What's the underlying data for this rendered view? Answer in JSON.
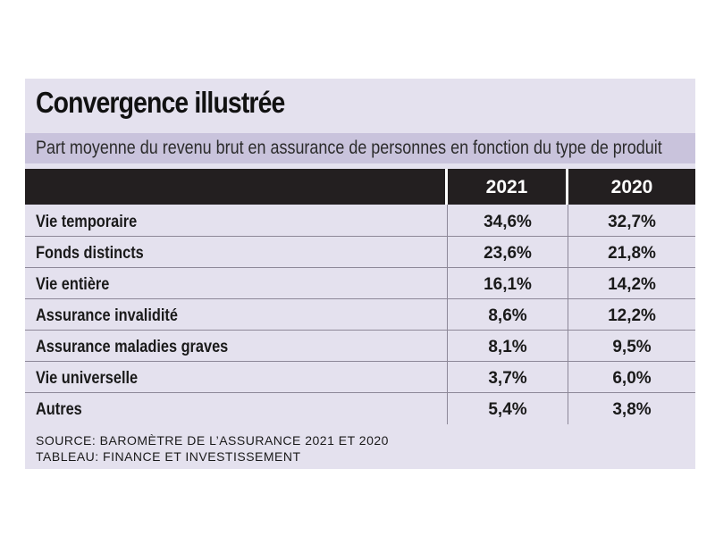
{
  "title": "Convergence illustrée",
  "subtitle": "Part moyenne du revenu brut en assurance de personnes en fonction du type de produit",
  "source_line1": "SOURCE: BAROMÈTRE DE L’ASSURANCE 2021 ET 2020",
  "source_line2": "TABLEAU: FINANCE ET INVESTISSEMENT",
  "colors": {
    "panel": "#e4e1ee",
    "subtitle_bar": "#c9c3dc",
    "header": "#231f20"
  },
  "chart_data": {
    "type": "table",
    "title": "Convergence illustrée",
    "subtitle": "Part moyenne du revenu brut en assurance de personnes en fonction du type de produit",
    "columns": [
      "",
      "2021",
      "2020"
    ],
    "rows": [
      {
        "label": "Vie temporaire",
        "v2021": "34,6%",
        "v2020": "32,7%"
      },
      {
        "label": "Fonds distincts",
        "v2021": "23,6%",
        "v2020": "21,8%"
      },
      {
        "label": "Vie entière",
        "v2021": "16,1%",
        "v2020": "14,2%"
      },
      {
        "label": "Assurance invalidité",
        "v2021": "8,6%",
        "v2020": "12,2%"
      },
      {
        "label": "Assurance maladies graves",
        "v2021": "8,1%",
        "v2020": "9,5%"
      },
      {
        "label": "Vie universelle",
        "v2021": "3,7%",
        "v2020": "6,0%"
      },
      {
        "label": "Autres",
        "v2021": "5,4%",
        "v2020": "3,8%"
      }
    ]
  }
}
